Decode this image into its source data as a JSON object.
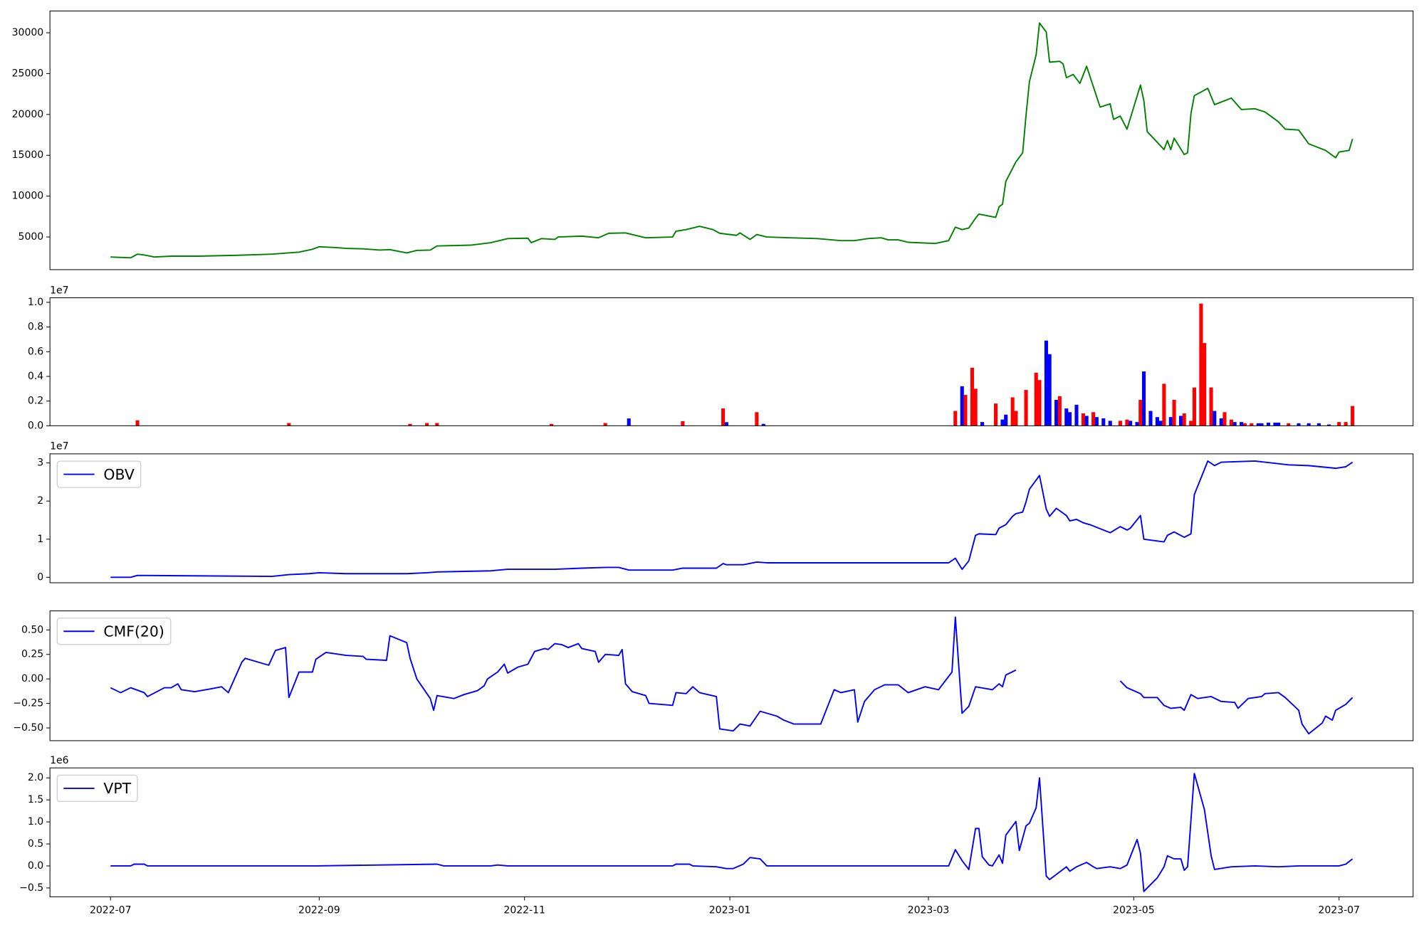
{
  "chart_data": [
    {
      "type": "line",
      "legend": "upper left",
      "x": [
        0,
        6,
        8,
        10,
        13,
        18,
        26,
        37,
        48,
        56,
        60,
        62,
        67,
        70,
        75,
        80,
        83,
        88,
        91,
        95,
        97,
        107,
        113,
        118,
        124,
        125,
        128,
        132,
        133,
        140,
        145,
        148,
        153,
        159,
        167,
        168,
        171,
        175,
        179,
        181,
        186,
        187,
        190,
        192,
        195,
        202,
        210,
        217,
        221,
        225,
        229,
        231,
        234,
        237,
        245,
        249,
        251,
        253,
        255,
        257,
        258,
        263,
        264,
        265,
        266,
        269,
        271,
        272,
        273,
        275,
        276,
        278,
        279,
        282,
        283,
        284,
        286,
        288,
        290,
        292,
        294,
        297,
        298,
        300,
        302,
        306,
        307,
        308,
        313,
        314,
        315,
        316,
        319,
        320,
        321,
        322,
        326,
        328,
        333,
        336,
        340,
        343,
        347,
        349,
        353,
        356,
        361,
        364,
        365,
        368,
        369
      ],
      "series": [
        {
          "color": "green",
          "values": [
            2550,
            2450,
            2900,
            2800,
            2550,
            2650,
            2650,
            2750,
            2900,
            3150,
            3500,
            3800,
            3700,
            3600,
            3550,
            3400,
            3450,
            3050,
            3350,
            3400,
            3900,
            4000,
            4300,
            4800,
            4850,
            4300,
            4800,
            4700,
            5000,
            5100,
            4900,
            5450,
            5500,
            4900,
            5000,
            5700,
            5900,
            6300,
            5900,
            5450,
            5200,
            5500,
            4700,
            5300,
            5000,
            4900,
            4800,
            4550,
            4550,
            4800,
            4900,
            4650,
            4650,
            4350,
            4200,
            4550,
            6200,
            5900,
            6100,
            7300,
            7800,
            7400,
            8700,
            9000,
            11800,
            14200,
            15300,
            19900,
            24000,
            27300,
            31200,
            30100,
            26400,
            26500,
            26200,
            24500,
            24900,
            23800,
            25900,
            23400,
            20900,
            21300,
            19400,
            19800,
            18200,
            23600,
            21700,
            17900,
            15700,
            16800,
            15700,
            17100,
            15100,
            15300,
            20100,
            22300,
            23200,
            21200,
            22000,
            20600,
            20700,
            20300,
            19100,
            18200,
            18100,
            16400,
            15600,
            14700,
            15400,
            15600,
            17000
          ]
        }
      ],
      "xlim": [
        -18,
        387
      ],
      "ylim": [
        1000,
        32667
      ],
      "yticks": [
        5000,
        10000,
        15000,
        20000,
        25000,
        30000
      ]
    },
    {
      "type": "bar",
      "offset_label": "1e7",
      "x": [
        8,
        53,
        89,
        94,
        97,
        131,
        147,
        154,
        170,
        182,
        183,
        192,
        194,
        251,
        253,
        254,
        256,
        257,
        259,
        263,
        265,
        266,
        268,
        269,
        272,
        275,
        276,
        278,
        279,
        281,
        282,
        284,
        285,
        287,
        289,
        290,
        292,
        293,
        295,
        297,
        300,
        302,
        303,
        305,
        306,
        307,
        309,
        311,
        312,
        313,
        315,
        316,
        318,
        319,
        321,
        322,
        324,
        325,
        327,
        328,
        330,
        331,
        333,
        334,
        336,
        337,
        339,
        341,
        342,
        344,
        346,
        347,
        350,
        353,
        356,
        359,
        362,
        365,
        367,
        369
      ],
      "values": [
        440000,
        220000,
        150000,
        220000,
        220000,
        150000,
        220000,
        590000,
        370000,
        1400000,
        290000,
        1100000,
        150000,
        1200000,
        3200000,
        2500000,
        4700000,
        3000000,
        300000,
        1800000,
        500000,
        900000,
        2300000,
        1200000,
        2900000,
        4300000,
        3700000,
        6900000,
        5800000,
        2100000,
        2400000,
        1400000,
        1100000,
        1700000,
        1000000,
        800000,
        1100000,
        700000,
        600000,
        400000,
        400000,
        500000,
        400000,
        300000,
        2100000,
        4400000,
        1200000,
        700000,
        400000,
        3400000,
        700000,
        2100000,
        800000,
        1000000,
        400000,
        3100000,
        9900000,
        6700000,
        3100000,
        1200000,
        600000,
        1100000,
        500000,
        300000,
        300000,
        200000,
        200000,
        200000,
        200000,
        250000,
        250000,
        250000,
        200000,
        200000,
        200000,
        200000,
        100000,
        300000,
        300000,
        1600000
      ],
      "colors": [
        "red",
        "red",
        "red",
        "red",
        "red",
        "red",
        "red",
        "blue",
        "red",
        "red",
        "blue",
        "red",
        "blue",
        "red",
        "blue",
        "red",
        "red",
        "red",
        "blue",
        "red",
        "blue",
        "blue",
        "red",
        "red",
        "red",
        "red",
        "red",
        "blue",
        "blue",
        "blue",
        "red",
        "blue",
        "blue",
        "blue",
        "red",
        "blue",
        "red",
        "blue",
        "blue",
        "blue",
        "red",
        "red",
        "blue",
        "blue",
        "red",
        "blue",
        "blue",
        "blue",
        "blue",
        "red",
        "blue",
        "red",
        "blue",
        "red",
        "red",
        "red",
        "red",
        "red",
        "red",
        "blue",
        "blue",
        "red",
        "red",
        "blue",
        "blue",
        "red",
        "red",
        "blue",
        "blue",
        "blue",
        "blue",
        "blue",
        "red",
        "blue",
        "blue",
        "blue",
        "blue",
        "red",
        "red",
        "red"
      ],
      "xlim": [
        -18,
        387
      ],
      "ylim": [
        0,
        10370000
      ],
      "yticks": [
        {
          "value": 0,
          "label": "0.0"
        },
        {
          "value": 2000000,
          "label": "0.2"
        },
        {
          "value": 4000000,
          "label": "0.4"
        },
        {
          "value": 6000000,
          "label": "0.6"
        },
        {
          "value": 8000000,
          "label": "0.8"
        },
        {
          "value": 10000000,
          "label": "1.0"
        }
      ]
    },
    {
      "type": "line",
      "legend": "upper left",
      "offset_label": "1e7",
      "x": [
        0,
        6,
        8,
        48,
        53,
        59,
        62,
        70,
        88,
        94,
        97,
        113,
        118,
        132,
        140,
        147,
        151,
        154,
        167,
        170,
        180,
        182,
        183,
        188,
        192,
        195,
        210,
        221,
        237,
        249,
        251,
        253,
        255,
        257,
        258,
        263,
        264,
        266,
        268,
        269,
        271,
        272,
        273,
        276,
        278,
        279,
        281,
        284,
        285,
        287,
        289,
        291,
        297,
        300,
        302,
        303,
        306,
        307,
        313,
        314,
        316,
        319,
        321,
        322,
        326,
        328,
        330,
        340,
        350,
        356,
        364,
        367,
        369
      ],
      "series": [
        {
          "name": "OBV",
          "color": "blue",
          "values": [
            0,
            0,
            500000,
            240000,
            700000,
            950000,
            1200000,
            950000,
            950000,
            1200000,
            1400000,
            1700000,
            2100000,
            2100000,
            2400000,
            2600000,
            2600000,
            1900000,
            1900000,
            2400000,
            2400000,
            3600000,
            3300000,
            3300000,
            4000000,
            3800000,
            3800000,
            3800000,
            3800000,
            3800000,
            5000000,
            2100000,
            4300000,
            11000000,
            11400000,
            11200000,
            12900000,
            13800000,
            16000000,
            16700000,
            17100000,
            19800000,
            23100000,
            26700000,
            17900000,
            16000000,
            18100000,
            16200000,
            14800000,
            15200000,
            14300000,
            13800000,
            11700000,
            13300000,
            12400000,
            12900000,
            16200000,
            10000000,
            9300000,
            11000000,
            11900000,
            10500000,
            11400000,
            21700000,
            30500000,
            29300000,
            30200000,
            30500000,
            29500000,
            29300000,
            28600000,
            29000000,
            30200000
          ]
        }
      ],
      "xlim": [
        -18,
        387
      ],
      "ylim": [
        -1430000,
        32380000
      ],
      "yticks": [
        {
          "value": 0,
          "label": "0"
        },
        {
          "value": 10000000,
          "label": "1"
        },
        {
          "value": 20000000,
          "label": "2"
        },
        {
          "value": 30000000,
          "label": "3"
        }
      ]
    },
    {
      "type": "line",
      "legend": "upper left",
      "x": [
        0,
        3,
        6,
        10,
        11,
        16,
        18,
        20,
        21,
        25,
        30,
        33,
        35,
        39,
        40,
        44,
        47,
        49,
        52,
        53,
        56,
        60,
        61,
        64,
        70,
        75,
        76,
        82,
        83,
        88,
        89,
        91,
        95,
        96,
        97,
        102,
        105,
        109,
        111,
        112,
        115,
        117,
        118,
        121,
        124,
        126,
        129,
        130,
        132,
        134,
        136,
        139,
        140,
        144,
        145,
        147,
        151,
        152,
        153,
        155,
        159,
        160,
        167,
        168,
        171,
        173,
        175,
        180,
        181,
        185,
        187,
        190,
        193,
        198,
        200,
        203,
        211,
        215,
        217,
        221,
        222,
        224,
        227,
        230,
        234,
        237,
        242,
        246,
        250,
        251,
        253,
        255,
        257,
        262,
        264,
        265,
        266,
        269,
        283,
        300,
        302,
        306,
        307,
        311,
        313,
        315,
        318,
        319,
        321,
        323,
        327,
        330,
        334,
        335,
        338,
        342,
        343,
        347,
        349,
        353,
        354,
        356,
        360,
        361,
        363,
        364,
        367,
        369
      ],
      "series": [
        {
          "name": "CMF(20)",
          "color": "blue",
          "values": [
            -0.09,
            -0.14,
            -0.09,
            -0.14,
            -0.18,
            -0.09,
            -0.09,
            -0.05,
            -0.11,
            -0.13,
            -0.1,
            -0.08,
            -0.14,
            0.17,
            0.21,
            0.17,
            0.14,
            0.29,
            0.32,
            -0.19,
            0.07,
            0.07,
            0.2,
            0.27,
            0.24,
            0.23,
            0.2,
            0.19,
            0.44,
            0.37,
            0.21,
            0,
            -0.2,
            -0.32,
            -0.17,
            -0.2,
            -0.16,
            -0.12,
            -0.07,
            0,
            0.07,
            0.15,
            0.06,
            0.12,
            0.15,
            0.28,
            0.31,
            0.3,
            0.36,
            0.35,
            0.32,
            0.36,
            0.31,
            0.28,
            0.17,
            0.25,
            0.24,
            0.3,
            -0.05,
            -0.13,
            -0.17,
            -0.25,
            -0.27,
            -0.14,
            -0.15,
            -0.08,
            -0.14,
            -0.18,
            -0.51,
            -0.53,
            -0.46,
            -0.48,
            -0.33,
            -0.38,
            -0.42,
            -0.46,
            -0.46,
            -0.11,
            -0.14,
            -0.11,
            -0.44,
            -0.23,
            -0.11,
            -0.06,
            -0.06,
            -0.14,
            -0.08,
            -0.11,
            0.07,
            0.63,
            -0.35,
            -0.28,
            -0.08,
            -0.11,
            -0.05,
            -0.08,
            0.04,
            0.09,
            null,
            -0.02,
            -0.09,
            -0.15,
            -0.19,
            -0.19,
            -0.27,
            -0.3,
            -0.29,
            -0.32,
            -0.16,
            -0.2,
            -0.18,
            -0.23,
            -0.24,
            -0.3,
            -0.2,
            -0.18,
            -0.15,
            -0.14,
            -0.19,
            -0.32,
            -0.46,
            -0.56,
            -0.45,
            -0.38,
            -0.42,
            -0.32,
            -0.26,
            -0.19
          ]
        }
      ],
      "xlim": [
        -18,
        387
      ],
      "ylim": [
        -0.63,
        0.694
      ],
      "yticks": [
        {
          "value": -0.5,
          "label": "−0.50"
        },
        {
          "value": -0.25,
          "label": "−0.25"
        },
        {
          "value": 0,
          "label": "0.00"
        },
        {
          "value": 0.25,
          "label": "0.25"
        },
        {
          "value": 0.5,
          "label": "0.50"
        }
      ]
    },
    {
      "type": "line",
      "legend": "upper left",
      "offset_label": "1e6",
      "x": [
        0,
        6,
        7,
        10,
        11,
        61,
        97,
        99,
        113,
        115,
        118,
        167,
        168,
        172,
        173,
        180,
        183,
        185,
        188,
        190,
        193,
        195,
        249,
        251,
        253,
        255,
        257,
        258,
        259,
        261,
        262,
        264,
        265,
        266,
        269,
        270,
        272,
        273,
        275,
        276,
        278,
        279,
        284,
        285,
        287,
        290,
        292,
        293,
        297,
        300,
        302,
        305,
        306,
        307,
        311,
        313,
        314,
        316,
        318,
        319,
        320,
        322,
        325,
        327,
        328,
        333,
        340,
        347,
        353,
        365,
        367,
        369
      ],
      "series": [
        {
          "name": "VPT",
          "color": "blue",
          "values": [
            0,
            0,
            40000,
            40000,
            0,
            0,
            40000,
            0,
            0,
            20000,
            0,
            0,
            40000,
            40000,
            0,
            -20000,
            -60000,
            -60000,
            40000,
            190000,
            160000,
            0,
            0,
            370000,
            120000,
            -80000,
            850000,
            850000,
            210000,
            20000,
            0,
            250000,
            60000,
            700000,
            1010000,
            350000,
            910000,
            970000,
            1320000,
            2000000,
            -230000,
            -310000,
            -20000,
            -120000,
            -20000,
            80000,
            -20000,
            -60000,
            -20000,
            -60000,
            20000,
            600000,
            290000,
            -580000,
            -270000,
            -20000,
            230000,
            160000,
            160000,
            -100000,
            -20000,
            2100000,
            1280000,
            230000,
            -80000,
            -20000,
            0,
            -20000,
            0,
            0,
            40000,
            160000
          ]
        }
      ],
      "xlim": [
        -18,
        387
      ],
      "ylim": [
        -701000,
        2227000
      ],
      "yticks": [
        {
          "value": -500000,
          "label": "−0.5"
        },
        {
          "value": 0,
          "label": "0.0"
        },
        {
          "value": 500000,
          "label": "0.5"
        },
        {
          "value": 1000000,
          "label": "1.0"
        },
        {
          "value": 1500000,
          "label": "1.5"
        },
        {
          "value": 2000000,
          "label": "2.0"
        }
      ],
      "xticks": [
        {
          "value": 0,
          "label": "2022-07"
        },
        {
          "value": 62,
          "label": "2022-09"
        },
        {
          "value": 123,
          "label": "2022-11"
        },
        {
          "value": 184,
          "label": "2023-01"
        },
        {
          "value": 243,
          "label": "2023-03"
        },
        {
          "value": 304,
          "label": "2023-05"
        },
        {
          "value": 365,
          "label": "2023-07"
        }
      ]
    }
  ]
}
